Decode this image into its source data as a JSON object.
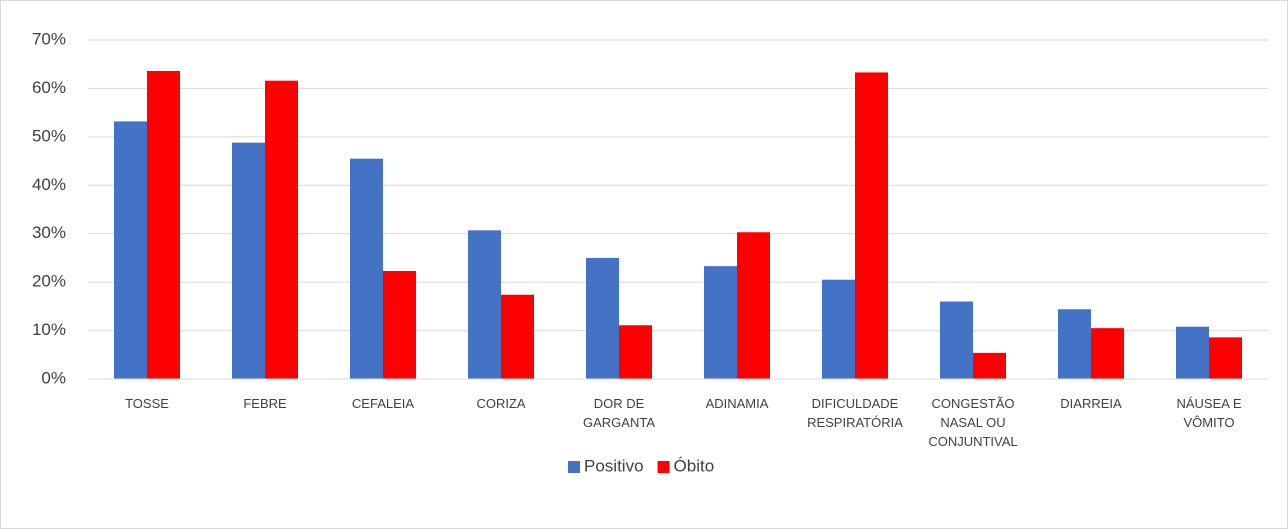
{
  "chart_data": {
    "type": "bar",
    "categories": [
      "TOSSE",
      "FEBRE",
      "CEFALEIA",
      "CORIZA",
      "DOR DE GARGANTA",
      "ADINAMIA",
      "DIFICULDADE RESPIRATÓRIA",
      "CONGESTÃO NASAL OU CONJUNTIVAL",
      "DIARREIA",
      "NÁUSEA E VÔMITO"
    ],
    "series": [
      {
        "name": "Positivo",
        "color": "#4472c4",
        "values": [
          53.2,
          48.8,
          45.5,
          30.7,
          25,
          23.3,
          20.5,
          16,
          14.4,
          10.8
        ]
      },
      {
        "name": "Óbito",
        "color": "#ff0000",
        "values": [
          63.6,
          61.6,
          22.3,
          17.4,
          11.1,
          30.3,
          63.3,
          5.4,
          10.5,
          8.6
        ]
      }
    ],
    "ylim": [
      0,
      70
    ],
    "yticks": [
      {
        "value": 0,
        "label": "0%"
      },
      {
        "value": 10,
        "label": "10%"
      },
      {
        "value": 20,
        "label": "20%"
      },
      {
        "value": 30,
        "label": "30%"
      },
      {
        "value": 40,
        "label": "40%"
      },
      {
        "value": 50,
        "label": "50%"
      },
      {
        "value": 60,
        "label": "60%"
      },
      {
        "value": 70,
        "label": "70%"
      }
    ],
    "grid": true,
    "legend": "bottom"
  }
}
